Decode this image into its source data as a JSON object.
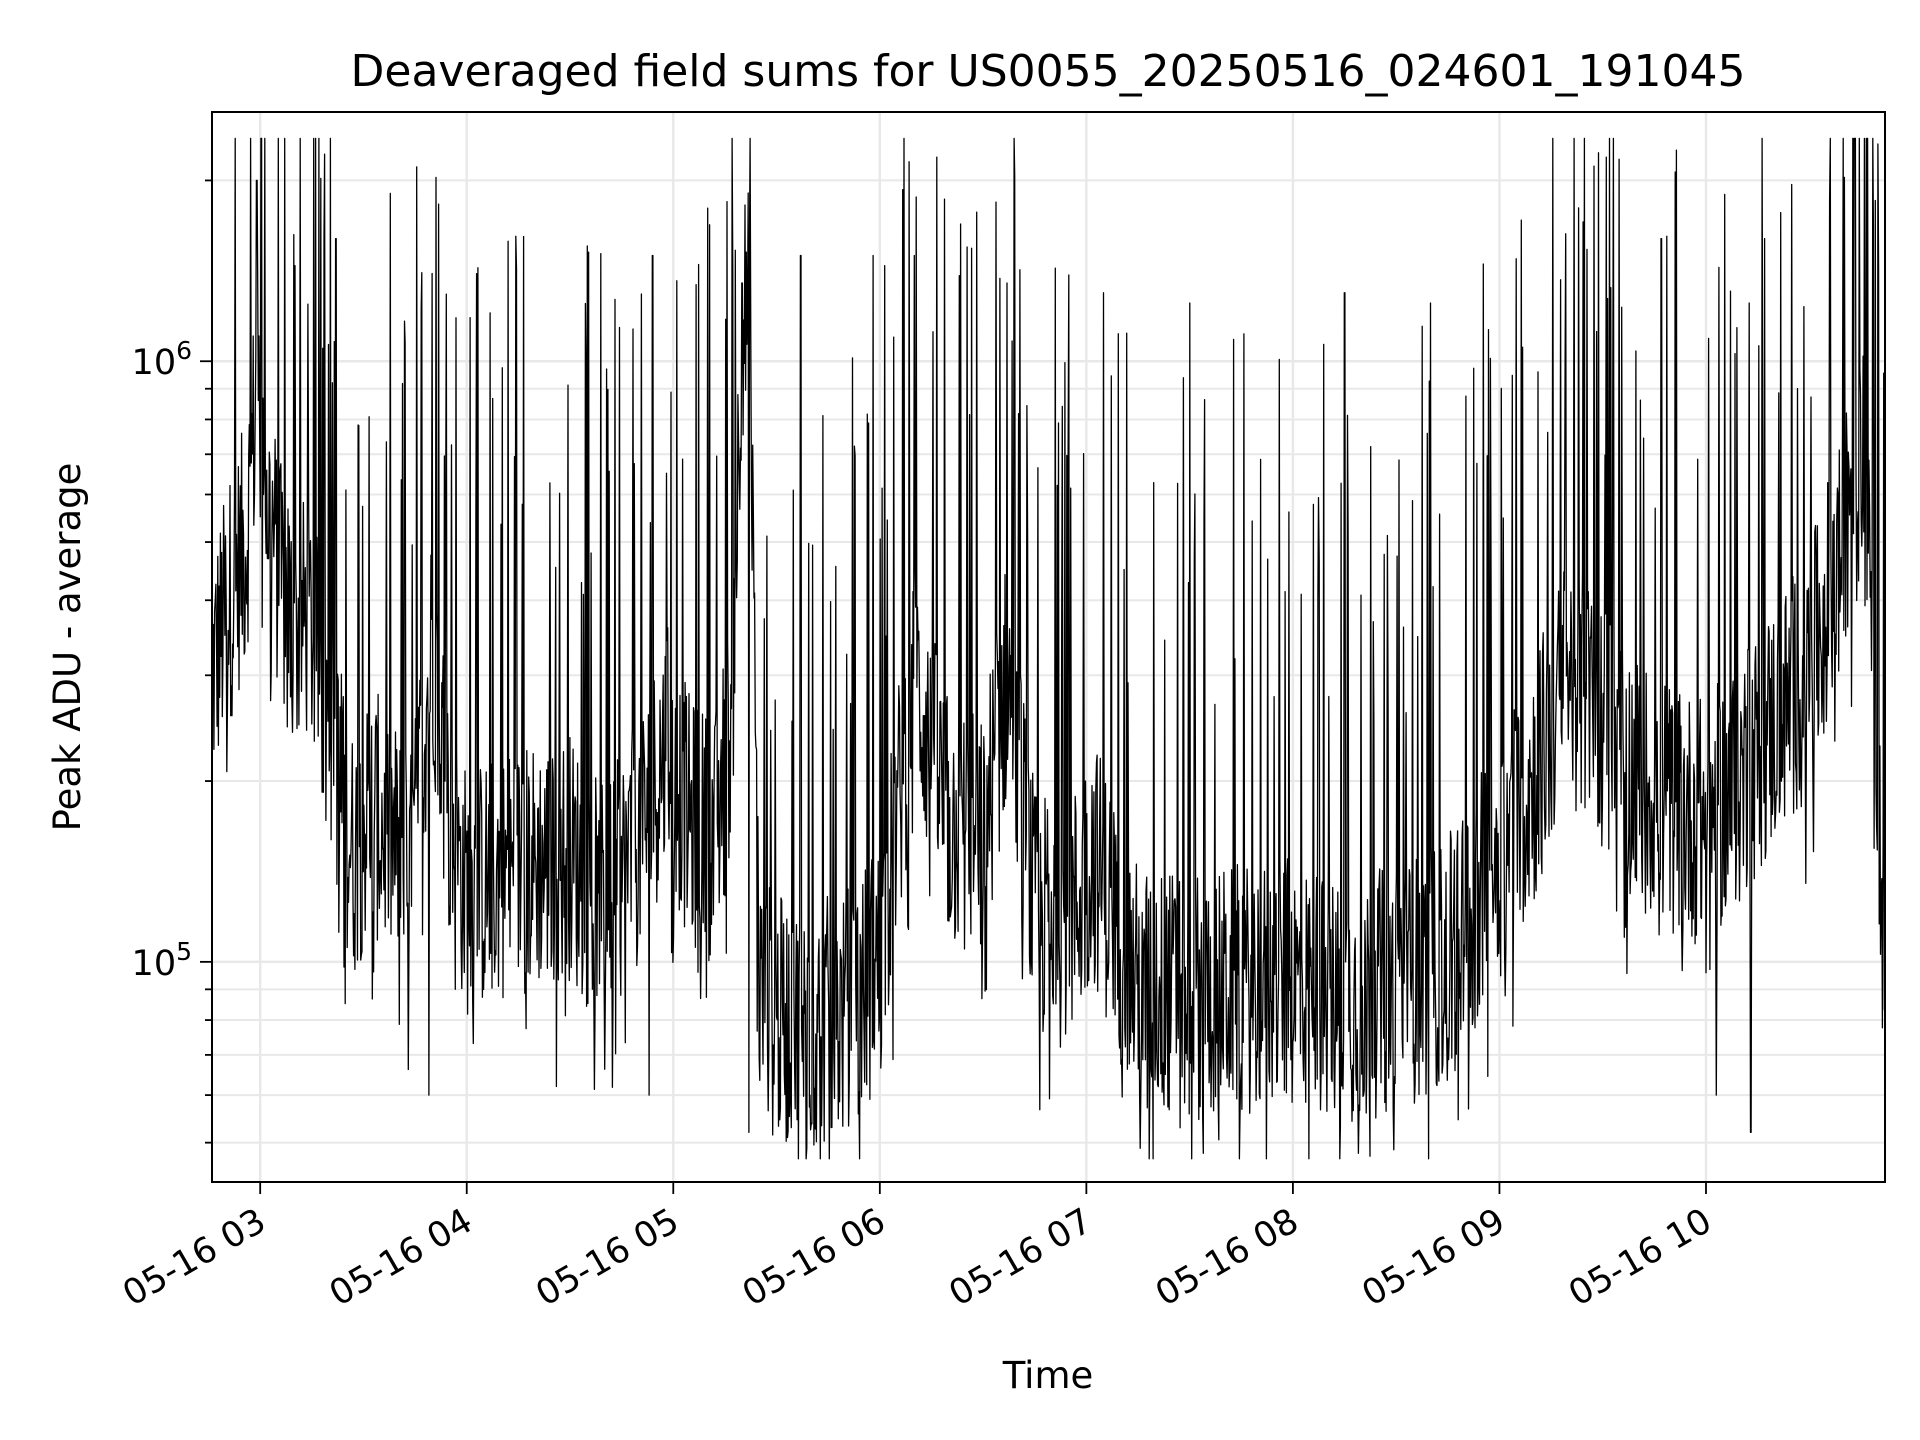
{
  "chart_data": {
    "type": "line",
    "title": "Deaveraged field sums for US0055_20250516_024601_191045",
    "xlabel": "Time",
    "ylabel": "Peak ADU - average",
    "x_range": [
      "2025-05-16 02:46",
      "2025-05-16 10:52"
    ],
    "y_scale": "log",
    "ylim": [
      43000,
      2600000
    ],
    "grid": "both, major and minor",
    "legend": "none",
    "line_color": "#000000",
    "x_ticks": [
      {
        "t": "2025-05-16 03:00",
        "label": "05-16 03"
      },
      {
        "t": "2025-05-16 04:00",
        "label": "05-16 04"
      },
      {
        "t": "2025-05-16 05:00",
        "label": "05-16 05"
      },
      {
        "t": "2025-05-16 06:00",
        "label": "05-16 06"
      },
      {
        "t": "2025-05-16 07:00",
        "label": "05-16 07"
      },
      {
        "t": "2025-05-16 08:00",
        "label": "05-16 08"
      },
      {
        "t": "2025-05-16 09:00",
        "label": "05-16 09"
      },
      {
        "t": "2025-05-16 10:00",
        "label": "05-16 10"
      }
    ],
    "y_ticks": [
      {
        "value": 100000,
        "base": "10",
        "exp": "5"
      },
      {
        "value": 1000000,
        "base": "10",
        "exp": "6"
      }
    ],
    "series": [
      {
        "x": [
          "2025-05-16 02:46",
          "2025-05-16 02:51",
          "2025-05-16 02:56",
          "2025-05-16 02:59",
          "2025-05-16 03:02",
          "2025-05-16 03:06",
          "2025-05-16 03:10",
          "2025-05-16 03:14",
          "2025-05-16 03:20",
          "2025-05-16 03:27",
          "2025-05-16 03:32",
          "2025-05-16 03:38",
          "2025-05-16 03:44",
          "2025-05-16 03:50",
          "2025-05-16 03:55",
          "2025-05-16 04:00",
          "2025-05-16 04:10",
          "2025-05-16 04:20",
          "2025-05-16 04:30",
          "2025-05-16 04:40",
          "2025-05-16 04:50",
          "2025-05-16 04:58",
          "2025-05-16 05:05",
          "2025-05-16 05:12",
          "2025-05-16 05:17",
          "2025-05-16 05:20",
          "2025-05-16 05:22",
          "2025-05-16 05:25",
          "2025-05-16 05:30",
          "2025-05-16 05:40",
          "2025-05-16 05:50",
          "2025-05-16 06:00",
          "2025-05-16 06:10",
          "2025-05-16 06:20",
          "2025-05-16 06:30",
          "2025-05-16 06:37",
          "2025-05-16 06:45",
          "2025-05-16 06:55",
          "2025-05-16 07:02",
          "2025-05-16 07:15",
          "2025-05-16 07:30",
          "2025-05-16 07:45",
          "2025-05-16 08:00",
          "2025-05-16 08:15",
          "2025-05-16 08:30",
          "2025-05-16 08:45",
          "2025-05-16 09:00",
          "2025-05-16 09:10",
          "2025-05-16 09:20",
          "2025-05-16 09:30",
          "2025-05-16 09:40",
          "2025-05-16 09:50",
          "2025-05-16 10:00",
          "2025-05-16 10:10",
          "2025-05-16 10:20",
          "2025-05-16 10:30",
          "2025-05-16 10:40",
          "2025-05-16 10:45",
          "2025-05-16 10:48",
          "2025-05-16 10:50",
          "2025-05-16 10:52"
        ],
        "y": [
          300000,
          400000,
          500000,
          900000,
          600000,
          420000,
          350000,
          380000,
          250000,
          150000,
          180000,
          160000,
          140000,
          350000,
          170000,
          130000,
          140000,
          145000,
          150000,
          120000,
          160000,
          230000,
          170000,
          160000,
          250000,
          1200000,
          1200000,
          90000,
          80000,
          78000,
          82000,
          100000,
          300000,
          170000,
          160000,
          300000,
          120000,
          115000,
          150000,
          90000,
          88000,
          90000,
          92000,
          86000,
          90000,
          100000,
          150000,
          200000,
          300000,
          250000,
          200000,
          180000,
          170000,
          200000,
          250000,
          300000,
          500000,
          700000,
          500000,
          200000,
          90000
        ]
      }
    ],
    "spikes": [
      {
        "t": "2025-05-16 02:59",
        "y": 2000000
      },
      {
        "t": "2025-05-16 03:22",
        "y": 1600000
      },
      {
        "t": "2025-05-16 03:50",
        "y": 1400000
      },
      {
        "t": "2025-05-16 04:54",
        "y": 1500000
      },
      {
        "t": "2025-05-16 05:20",
        "y": 1350000
      },
      {
        "t": "2025-05-16 05:37",
        "y": 1500000
      },
      {
        "t": "2025-05-16 05:58",
        "y": 1500000
      },
      {
        "t": "2025-05-16 06:10",
        "y": 1500000
      },
      {
        "t": "2025-05-16 06:37",
        "y": 1350000
      },
      {
        "t": "2025-05-16 07:05",
        "y": 1300000
      },
      {
        "t": "2025-05-16 07:30",
        "y": 1250000
      },
      {
        "t": "2025-05-16 08:15",
        "y": 1300000
      },
      {
        "t": "2025-05-16 08:40",
        "y": 1250000
      },
      {
        "t": "2025-05-16 09:23",
        "y": 1800000
      },
      {
        "t": "2025-05-16 09:47",
        "y": 1600000
      },
      {
        "t": "2025-05-16 10:17",
        "y": 1600000
      },
      {
        "t": "2025-05-16 10:50",
        "y": 2300000
      }
    ],
    "dips": [
      {
        "t": "2025-05-16 03:49",
        "y": 60000
      },
      {
        "t": "2025-05-16 04:26",
        "y": 62000
      },
      {
        "t": "2025-05-16 04:53",
        "y": 60000
      },
      {
        "t": "2025-05-16 05:22",
        "y": 52000
      },
      {
        "t": "2025-05-16 05:46",
        "y": 53000
      },
      {
        "t": "2025-05-16 07:34",
        "y": 48000
      },
      {
        "t": "2025-05-16 08:19",
        "y": 48000
      },
      {
        "t": "2025-05-16 10:03",
        "y": 60000
      },
      {
        "t": "2025-05-16 10:13",
        "y": 52000
      }
    ]
  }
}
